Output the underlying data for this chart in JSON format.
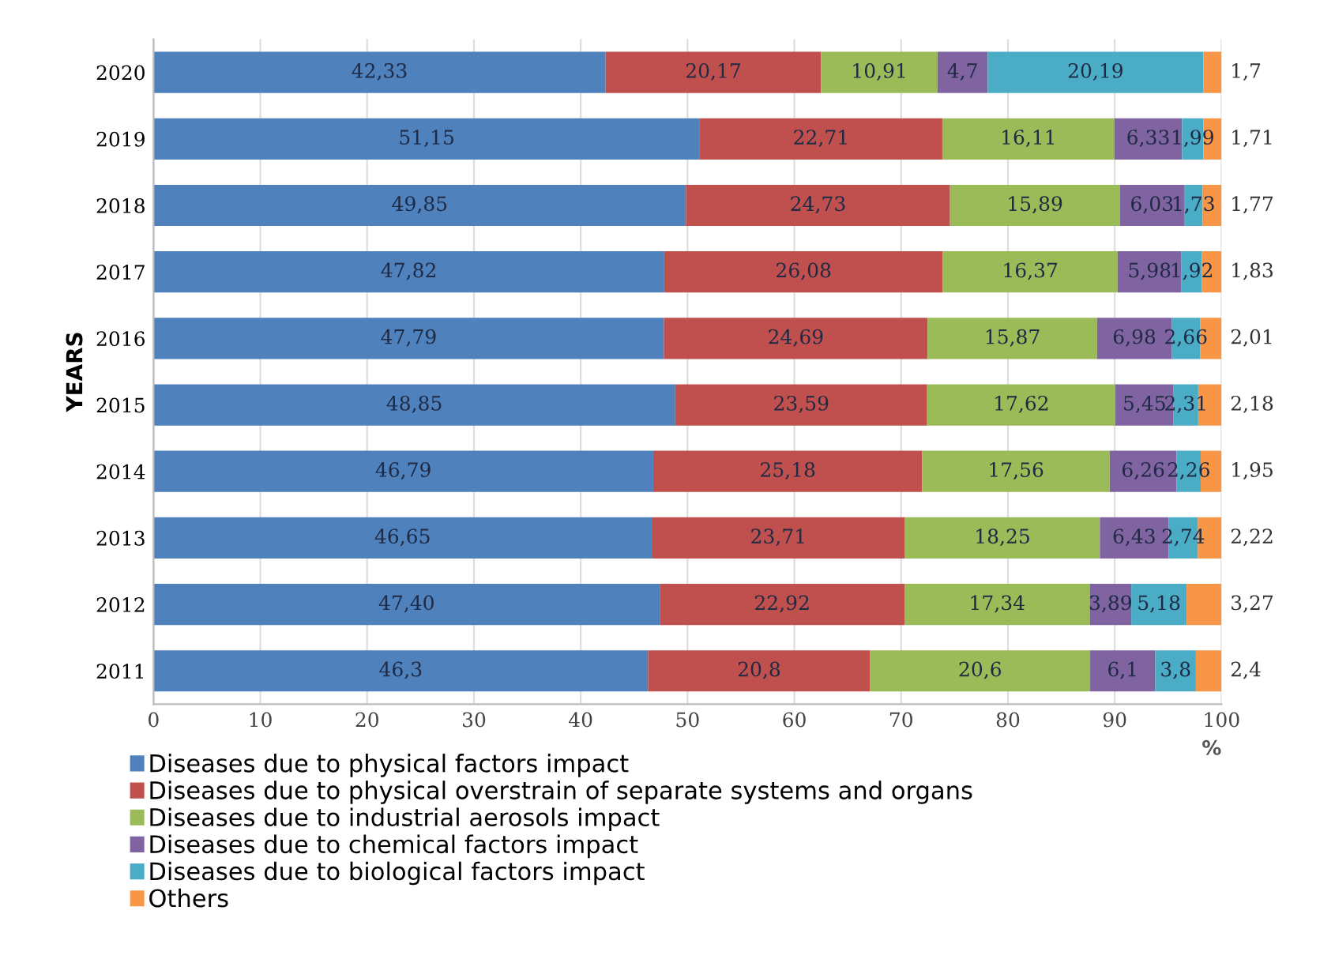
{
  "chart_data": {
    "type": "bar",
    "orientation": "horizontal",
    "stacked": true,
    "categories": [
      "2020",
      "2019",
      "2018",
      "2017",
      "2016",
      "2015",
      "2014",
      "2013",
      "2012",
      "2011"
    ],
    "xlim": [
      0,
      100
    ],
    "xticks": [
      0,
      10,
      20,
      30,
      40,
      50,
      60,
      70,
      80,
      90,
      100
    ],
    "xlabel": "%",
    "ylabel": "YEARS",
    "grid": "x",
    "legend": "bottom left",
    "series": [
      {
        "name": "Diseases due to physical factors impact",
        "color": "#4f81bd",
        "values": [
          42.33,
          51.15,
          49.85,
          47.82,
          47.79,
          48.85,
          46.79,
          46.65,
          47.4,
          46.3
        ],
        "value_labels": [
          "42,33",
          "51,15",
          "49,85",
          "47,82",
          "47,79",
          "48,85",
          "46,79",
          "46,65",
          "47,40",
          "46,3"
        ]
      },
      {
        "name": "Diseases due to physical overstrain of separate systems and organs",
        "color": "#c0504d",
        "values": [
          20.17,
          22.71,
          24.73,
          26.08,
          24.69,
          23.59,
          25.18,
          23.71,
          22.92,
          20.8
        ],
        "value_labels": [
          "20,17",
          "22,71",
          "24,73",
          "26,08",
          "24,69",
          "23,59",
          "25,18",
          "23,71",
          "22,92",
          "20,8"
        ]
      },
      {
        "name": "Diseases due to industrial aerosols impact",
        "color": "#9bbb59",
        "values": [
          10.91,
          16.11,
          15.89,
          16.37,
          15.87,
          17.62,
          17.56,
          18.25,
          17.34,
          20.6
        ],
        "value_labels": [
          "10,91",
          "16,11",
          "15,89",
          "16,37",
          "15,87",
          "17,62",
          "17,56",
          "18,25",
          "17,34",
          "20,6"
        ]
      },
      {
        "name": "Diseases due to chemical factors impact",
        "color": "#8064a2",
        "values": [
          4.7,
          6.33,
          6.03,
          5.98,
          6.98,
          5.45,
          6.26,
          6.43,
          3.89,
          6.1
        ],
        "value_labels": [
          "4,7",
          "6,33",
          "6,03",
          "5,98",
          "6,98",
          "5,45",
          "6,26",
          "6,43",
          "3,89",
          "6,1"
        ]
      },
      {
        "name": "Diseases due to biological factors impact",
        "color": "#4bacc6",
        "values": [
          20.19,
          1.99,
          1.73,
          1.92,
          2.66,
          2.31,
          2.26,
          2.74,
          5.18,
          3.8
        ],
        "value_labels": [
          "20,19",
          "1,99",
          "1,73",
          "1,92",
          "2,66",
          "2,31",
          "2,26",
          "2,74",
          "5,18",
          "3,8"
        ]
      },
      {
        "name": "Others",
        "color": "#f79646",
        "values": [
          1.7,
          1.71,
          1.77,
          1.83,
          2.01,
          2.18,
          1.95,
          2.22,
          3.27,
          2.4
        ],
        "value_labels": [
          "1,7",
          "1,71",
          "1,77",
          "1,83",
          "2,01",
          "2,18",
          "1,95",
          "2,22",
          "3,27",
          "2,4"
        ]
      }
    ]
  }
}
